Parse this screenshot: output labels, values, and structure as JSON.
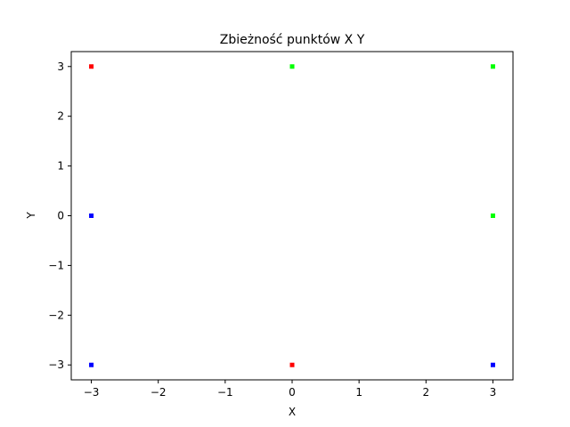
{
  "chart_data": {
    "type": "scatter",
    "title": "Zbieżność punktów X Y",
    "xlabel": "X",
    "ylabel": "Y",
    "xlim": [
      -3.3,
      3.3
    ],
    "ylim": [
      -3.3,
      3.3
    ],
    "xticks": [
      -3,
      -2,
      -1,
      0,
      1,
      2,
      3
    ],
    "yticks": [
      -3,
      -2,
      -1,
      0,
      1,
      2,
      3
    ],
    "xtick_labels": [
      "−3",
      "−2",
      "−1",
      "0",
      "1",
      "2",
      "3"
    ],
    "ytick_labels": [
      "−3",
      "−2",
      "−1",
      "0",
      "1",
      "2",
      "3"
    ],
    "grid": false,
    "series": [
      {
        "color": "#ff0000",
        "points": [
          {
            "x": -3,
            "y": 3
          },
          {
            "x": 0,
            "y": -3
          }
        ]
      },
      {
        "color": "#00ff00",
        "points": [
          {
            "x": 0,
            "y": 3
          },
          {
            "x": 3,
            "y": 3
          },
          {
            "x": 3,
            "y": 0
          }
        ]
      },
      {
        "color": "#0000ff",
        "points": [
          {
            "x": -3,
            "y": 0
          },
          {
            "x": -3,
            "y": -3
          },
          {
            "x": 3,
            "y": -3
          }
        ]
      }
    ]
  }
}
